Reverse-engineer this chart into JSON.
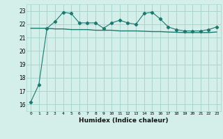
{
  "title": "",
  "xlabel": "Humidex (Indice chaleur)",
  "ylabel": "",
  "x": [
    0,
    1,
    2,
    3,
    4,
    5,
    6,
    7,
    8,
    9,
    10,
    11,
    12,
    13,
    14,
    15,
    16,
    17,
    18,
    19,
    20,
    21,
    22,
    23
  ],
  "y_curve": [
    16.2,
    17.5,
    21.7,
    22.2,
    22.9,
    22.8,
    22.1,
    22.1,
    22.1,
    21.7,
    22.1,
    22.3,
    22.1,
    22.0,
    22.8,
    22.9,
    22.4,
    21.8,
    21.6,
    21.5,
    21.5,
    21.5,
    21.6,
    21.8
  ],
  "y_smooth": [
    21.7,
    21.7,
    21.7,
    21.65,
    21.65,
    21.6,
    21.6,
    21.6,
    21.55,
    21.55,
    21.55,
    21.5,
    21.5,
    21.5,
    21.48,
    21.45,
    21.45,
    21.42,
    21.4,
    21.38,
    21.38,
    21.38,
    21.38,
    21.42
  ],
  "line_color": "#1a7a6e",
  "bg_color": "#d4eeea",
  "grid_color": "#a8d5ce",
  "ylim": [
    15.5,
    23.5
  ],
  "yticks": [
    16,
    17,
    18,
    19,
    20,
    21,
    22,
    23
  ],
  "xlim": [
    -0.5,
    23.5
  ]
}
